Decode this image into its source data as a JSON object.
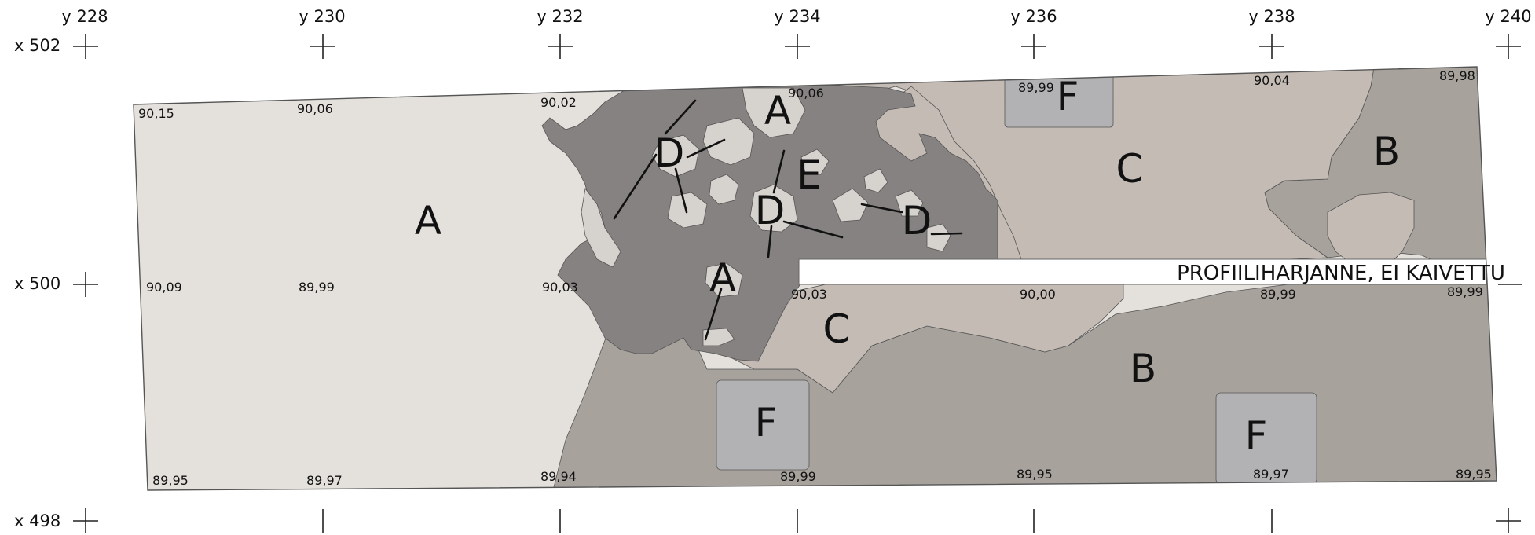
{
  "colors": {
    "A": "#e4e1dc",
    "B": "#a7a29c",
    "C": "#c4bbb5",
    "E": "#858281",
    "D": "#d6d3cf",
    "F": "#b2b2b4",
    "outline": "#555555"
  },
  "grid": {
    "y_labels": [
      "y 228",
      "y 230",
      "y 232",
      "y 234",
      "y 236",
      "y 238",
      "y 240"
    ],
    "x_labels": [
      "x 502",
      "x 500",
      "x 498"
    ]
  },
  "elevations": [
    "90,15",
    "90,06",
    "90,02",
    "90,06",
    "89,99",
    "90,04",
    "89,98",
    "90,09",
    "89,99",
    "90,03",
    "90,03",
    "90,00",
    "89,99",
    "89,99",
    "89,95",
    "89,97",
    "89,94",
    "89,99",
    "89,95",
    "89,97",
    "89,95"
  ],
  "zones": [
    "A",
    "A",
    "A",
    "B",
    "B",
    "C",
    "C",
    "D",
    "D",
    "D",
    "E",
    "F",
    "F",
    "F"
  ],
  "note": "PROFIILIHARJANNE, EI KAIVETTU"
}
